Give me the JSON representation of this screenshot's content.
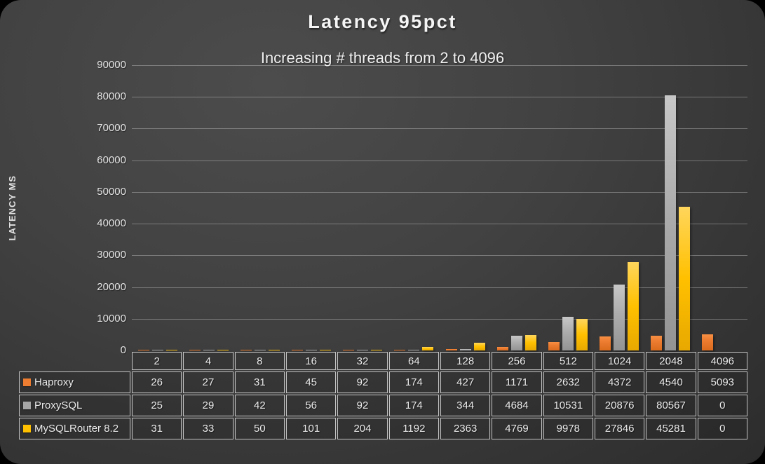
{
  "chart_data": {
    "type": "bar",
    "title": "Latency 95pct",
    "subtitle": "Increasing # threads from 2 to 4096",
    "ylabel": "LATENCY MS",
    "xlabel": "",
    "categories": [
      "2",
      "4",
      "8",
      "16",
      "32",
      "64",
      "128",
      "256",
      "512",
      "1024",
      "2048",
      "4096"
    ],
    "series": [
      {
        "name": "Haproxy",
        "color": "#ED7D31",
        "values": [
          26,
          27,
          31,
          45,
          92,
          174,
          427,
          1171,
          2632,
          4372,
          4540,
          5093
        ]
      },
      {
        "name": "ProxySQL",
        "color": "#A6A6A6",
        "values": [
          25,
          29,
          42,
          56,
          92,
          174,
          344,
          4684,
          10531,
          20876,
          80567,
          0
        ]
      },
      {
        "name": "MySQLRouter 8.2",
        "color": "#FFC000",
        "values": [
          31,
          33,
          50,
          101,
          204,
          1192,
          2363,
          4769,
          9978,
          27846,
          45281,
          0
        ]
      }
    ],
    "ylim": [
      0,
      90000
    ],
    "ytick_step": 10000,
    "grid": true,
    "legend_position": "table-left",
    "background_color": "#3f3f3f",
    "text_color": "#f0f0f0",
    "gridline_color": "#7a7a7a"
  }
}
